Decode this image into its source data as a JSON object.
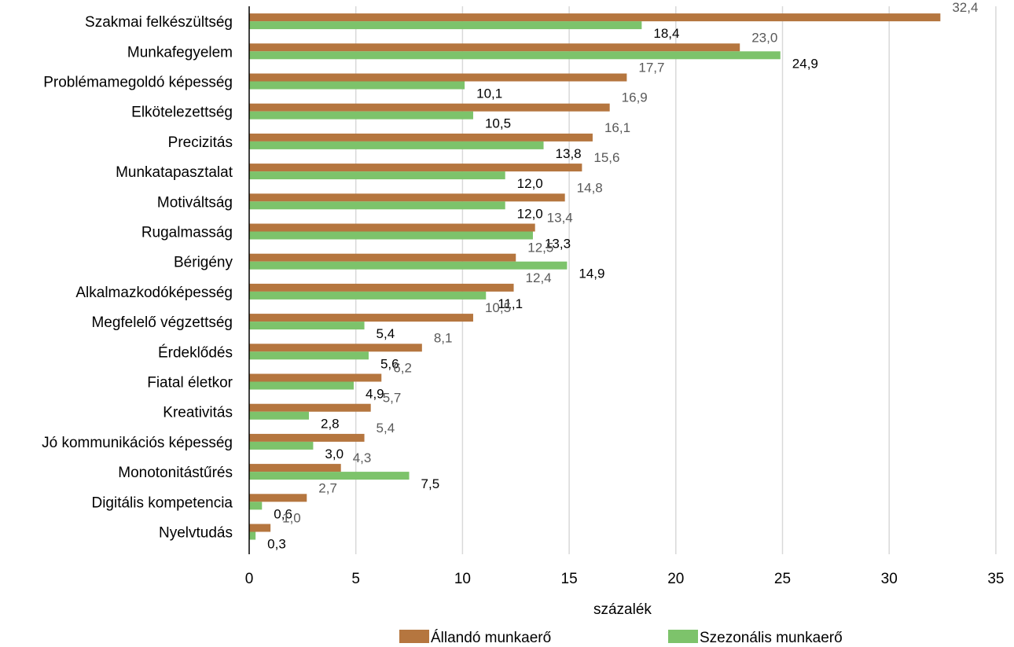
{
  "chart_data": {
    "type": "bar",
    "orientation": "horizontal",
    "categories": [
      "Szakmai felkészültség",
      "Munkafegyelem",
      "Problémamegoldó képesség",
      "Elkötelezettség",
      "Precizitás",
      "Munkatapasztalat",
      "Motiváltság",
      "Rugalmasság",
      "Bérigény",
      "Alkalmazkodóképesség",
      "Megfelelő végzettség",
      "Érdeklődés",
      "Fiatal életkor",
      "Kreativitás",
      "Jó kommunikációs képesség",
      "Monotonitástűrés",
      "Digitális kompetencia",
      "Nyelvtudás"
    ],
    "series": [
      {
        "name": "Állandó munkaerő",
        "color": "#B5763F",
        "values": [
          32.4,
          23.0,
          17.7,
          16.9,
          16.1,
          15.6,
          14.8,
          13.4,
          12.5,
          12.4,
          10.5,
          8.1,
          6.2,
          5.7,
          5.4,
          4.3,
          2.7,
          1.0
        ],
        "labels": [
          "32,4",
          "23,0",
          "17,7",
          "16,9",
          "16,1",
          "15,6",
          "14,8",
          "13,4",
          "12,5",
          "12,4",
          "10,5",
          "8,1",
          "6,2",
          "5,7",
          "5,4",
          "4,3",
          "2,7",
          "1,0"
        ]
      },
      {
        "name": "Szezonális munkaerő",
        "color": "#7DC36B",
        "values": [
          18.4,
          24.9,
          10.1,
          10.5,
          13.8,
          12.0,
          12.0,
          13.3,
          14.9,
          11.1,
          5.4,
          5.6,
          4.9,
          2.8,
          3.0,
          7.5,
          0.6,
          0.3
        ],
        "labels": [
          "18,4",
          "24,9",
          "10,1",
          "10,5",
          "13,8",
          "12,0",
          "12,0",
          "13,3",
          "14,9",
          "11,1",
          "5,4",
          "5,6",
          "4,9",
          "2,8",
          "3,0",
          "7,5",
          "0,6",
          "0,3"
        ]
      }
    ],
    "xlabel": "százalék",
    "xlim": [
      0,
      35
    ],
    "xticks": [
      0,
      5,
      10,
      15,
      20,
      25,
      30,
      35
    ],
    "xtick_labels": [
      "0",
      "5",
      "10",
      "15",
      "20",
      "25",
      "30",
      "35"
    ],
    "grid": true,
    "legend_position": "bottom",
    "grid_color": "#D9D9D9",
    "axis_color": "#000000"
  }
}
